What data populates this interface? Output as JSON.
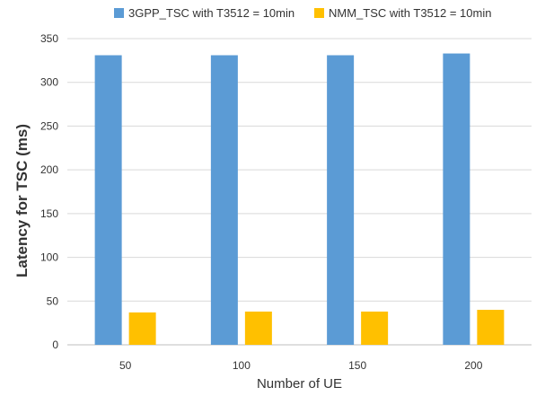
{
  "chart_data": {
    "type": "bar",
    "categories": [
      "50",
      "100",
      "150",
      "200"
    ],
    "series": [
      {
        "name": "3GPP_TSC with T3512 = 10min",
        "values": [
          331,
          331,
          331,
          333
        ],
        "color": "#5B9BD5"
      },
      {
        "name": "NMM_TSC with T3512 = 10min",
        "values": [
          37,
          38,
          38,
          40
        ],
        "color": "#FFC000"
      }
    ],
    "title": "",
    "xlabel": "Number of UE",
    "ylabel": "Latency for TSC (ms)",
    "ylim": [
      0,
      350
    ],
    "yticks": [
      "0",
      "50",
      "100",
      "150",
      "200",
      "250",
      "300",
      "350"
    ],
    "grid": true,
    "legend_position": "top"
  }
}
